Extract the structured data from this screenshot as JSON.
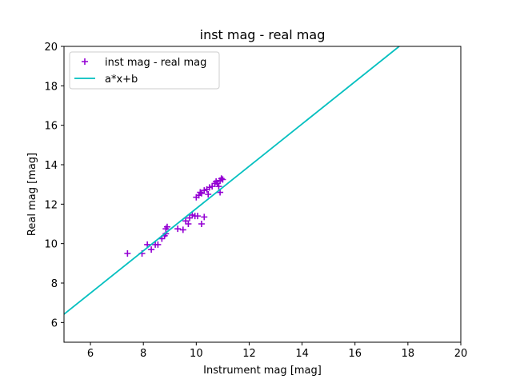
{
  "chart_data": {
    "type": "scatter",
    "title": "inst mag - real mag",
    "xlabel": "Instrument mag [mag]",
    "ylabel": "Real mag [mag]",
    "xlim": [
      5,
      20
    ],
    "ylim": [
      5,
      20
    ],
    "xticks": [
      6,
      8,
      10,
      12,
      14,
      16,
      18,
      20
    ],
    "yticks": [
      6,
      8,
      10,
      12,
      14,
      16,
      18,
      20
    ],
    "grid": false,
    "legend_position": "upper-left",
    "series": [
      {
        "name": "inst mag - real mag",
        "kind": "scatter",
        "marker": "plus",
        "color": "#9400d3",
        "points": [
          [
            7.4,
            9.5
          ],
          [
            7.95,
            9.5
          ],
          [
            8.15,
            9.95
          ],
          [
            8.3,
            9.7
          ],
          [
            8.45,
            9.95
          ],
          [
            8.55,
            9.95
          ],
          [
            8.7,
            10.25
          ],
          [
            8.8,
            10.4
          ],
          [
            8.85,
            10.75
          ],
          [
            8.9,
            10.85
          ],
          [
            8.85,
            10.5
          ],
          [
            9.3,
            10.75
          ],
          [
            9.5,
            10.7
          ],
          [
            9.6,
            11.15
          ],
          [
            9.7,
            11.0
          ],
          [
            9.75,
            11.3
          ],
          [
            9.85,
            11.45
          ],
          [
            9.95,
            11.4
          ],
          [
            10.05,
            11.4
          ],
          [
            10.2,
            11.0
          ],
          [
            10.3,
            11.35
          ],
          [
            10.0,
            12.35
          ],
          [
            10.1,
            12.45
          ],
          [
            10.15,
            12.6
          ],
          [
            10.2,
            12.55
          ],
          [
            10.3,
            12.7
          ],
          [
            10.4,
            12.75
          ],
          [
            10.45,
            12.5
          ],
          [
            10.5,
            12.85
          ],
          [
            10.6,
            12.9
          ],
          [
            10.7,
            13.05
          ],
          [
            10.75,
            13.15
          ],
          [
            10.8,
            13.05
          ],
          [
            10.85,
            12.9
          ],
          [
            10.9,
            13.2
          ],
          [
            10.95,
            13.3
          ],
          [
            11.0,
            13.25
          ],
          [
            10.9,
            12.6
          ]
        ]
      },
      {
        "name": "a*x+b",
        "kind": "line",
        "color": "#00bfbf",
        "points": [
          [
            5,
            6.42
          ],
          [
            17.67,
            20
          ]
        ]
      }
    ]
  }
}
